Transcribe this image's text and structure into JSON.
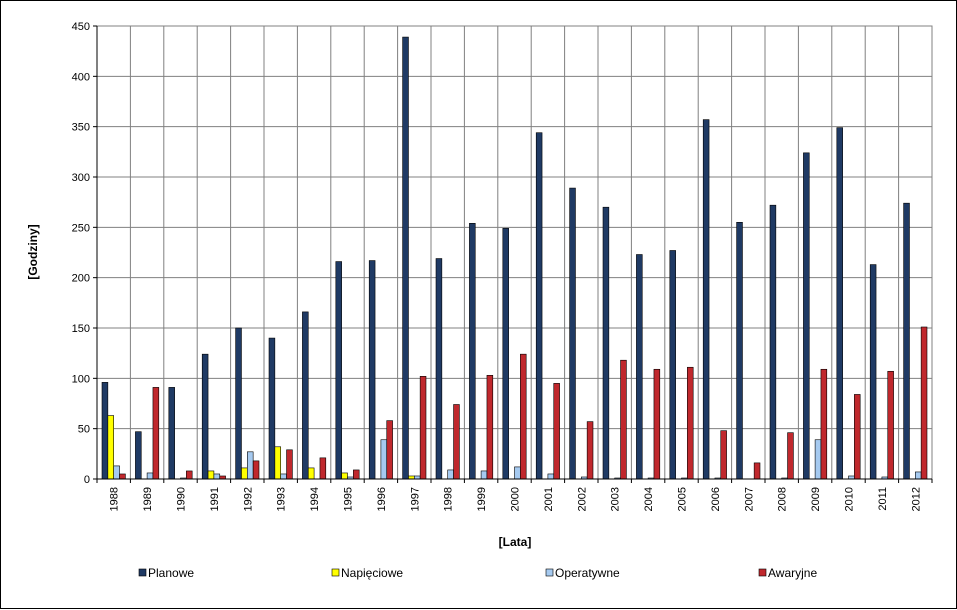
{
  "chart_data": {
    "type": "bar",
    "title": "",
    "xlabel": "[Lata]",
    "ylabel": "[Godziny]",
    "ylim": [
      0,
      450
    ],
    "yticks": [
      "0",
      "50",
      "100",
      "150",
      "200",
      "250",
      "300",
      "350",
      "400",
      "450"
    ],
    "grid": "on",
    "legend_position": "bottom",
    "categories": [
      "1988",
      "1989",
      "1990",
      "1991",
      "1992",
      "1993",
      "1994",
      "1995",
      "1996",
      "1997",
      "1998",
      "1999",
      "2000",
      "2001",
      "2002",
      "2003",
      "2004",
      "2005",
      "2006",
      "2007",
      "2008",
      "2009",
      "2010",
      "2011",
      "2012"
    ],
    "series": [
      {
        "name": "Planowe",
        "color": "#1F3A64",
        "values": [
          96,
          47,
          91,
          124,
          150,
          140,
          166,
          216,
          217,
          439,
          219,
          254,
          249,
          344,
          289,
          270,
          223,
          227,
          357,
          255,
          272,
          324,
          349,
          213,
          274
        ]
      },
      {
        "name": "Napięciowe",
        "color": "#FFFF00",
        "values": [
          63,
          0,
          0,
          8,
          11,
          32,
          11,
          6,
          0,
          3,
          0,
          0,
          0,
          0,
          0,
          0,
          0,
          0,
          0,
          0,
          0,
          0,
          0,
          0,
          0
        ]
      },
      {
        "name": "Operatywne",
        "color": "#A6CAF0",
        "values": [
          13,
          6,
          1,
          5,
          27,
          5,
          0,
          2,
          39,
          3,
          9,
          8,
          12,
          5,
          2,
          1,
          1,
          1,
          1,
          0,
          1,
          39,
          3,
          2,
          7
        ]
      },
      {
        "name": "Awaryjne",
        "color": "#C0282D",
        "values": [
          5,
          91,
          8,
          3,
          18,
          29,
          21,
          9,
          58,
          102,
          74,
          103,
          124,
          95,
          57,
          118,
          109,
          111,
          48,
          16,
          46,
          109,
          84,
          107,
          151
        ]
      }
    ]
  }
}
